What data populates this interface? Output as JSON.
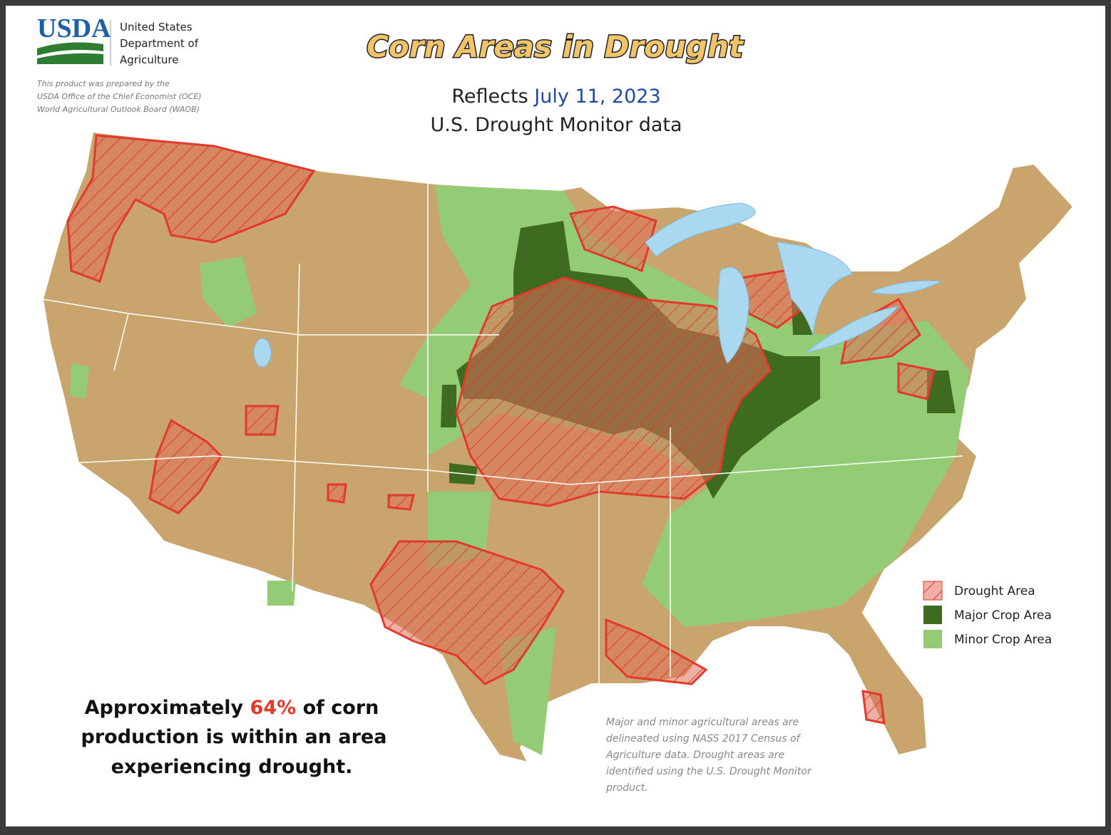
{
  "header": {
    "logo": "USDA",
    "org_lines": [
      "United States",
      "Department of",
      "Agriculture"
    ],
    "note_lines": [
      "This product was prepared by the",
      "USDA Office of the Chief Economist (OCE)",
      "World Agricultural Outlook Board (WAOB)"
    ]
  },
  "title": "Corn Areas in Drought",
  "subtitle": {
    "prefix": "Reflects",
    "date": "July 11, 2023",
    "line2": "U.S. Drought Monitor data"
  },
  "legend": [
    {
      "label": "Drought Area"
    },
    {
      "label": "Major Crop Area"
    },
    {
      "label": "Minor Crop Area"
    }
  ],
  "callout": {
    "before": "Approximately",
    "highlight": "64%",
    "after": "of corn",
    "line2": "production is within an area",
    "line3": "experiencing drought."
  },
  "footnote": [
    "Major and minor agricultural areas are",
    "delineated using NASS 2017 Census of",
    "Agriculture data.  Drought areas are",
    "identified using the U.S. Drought Monitor",
    "product."
  ]
}
